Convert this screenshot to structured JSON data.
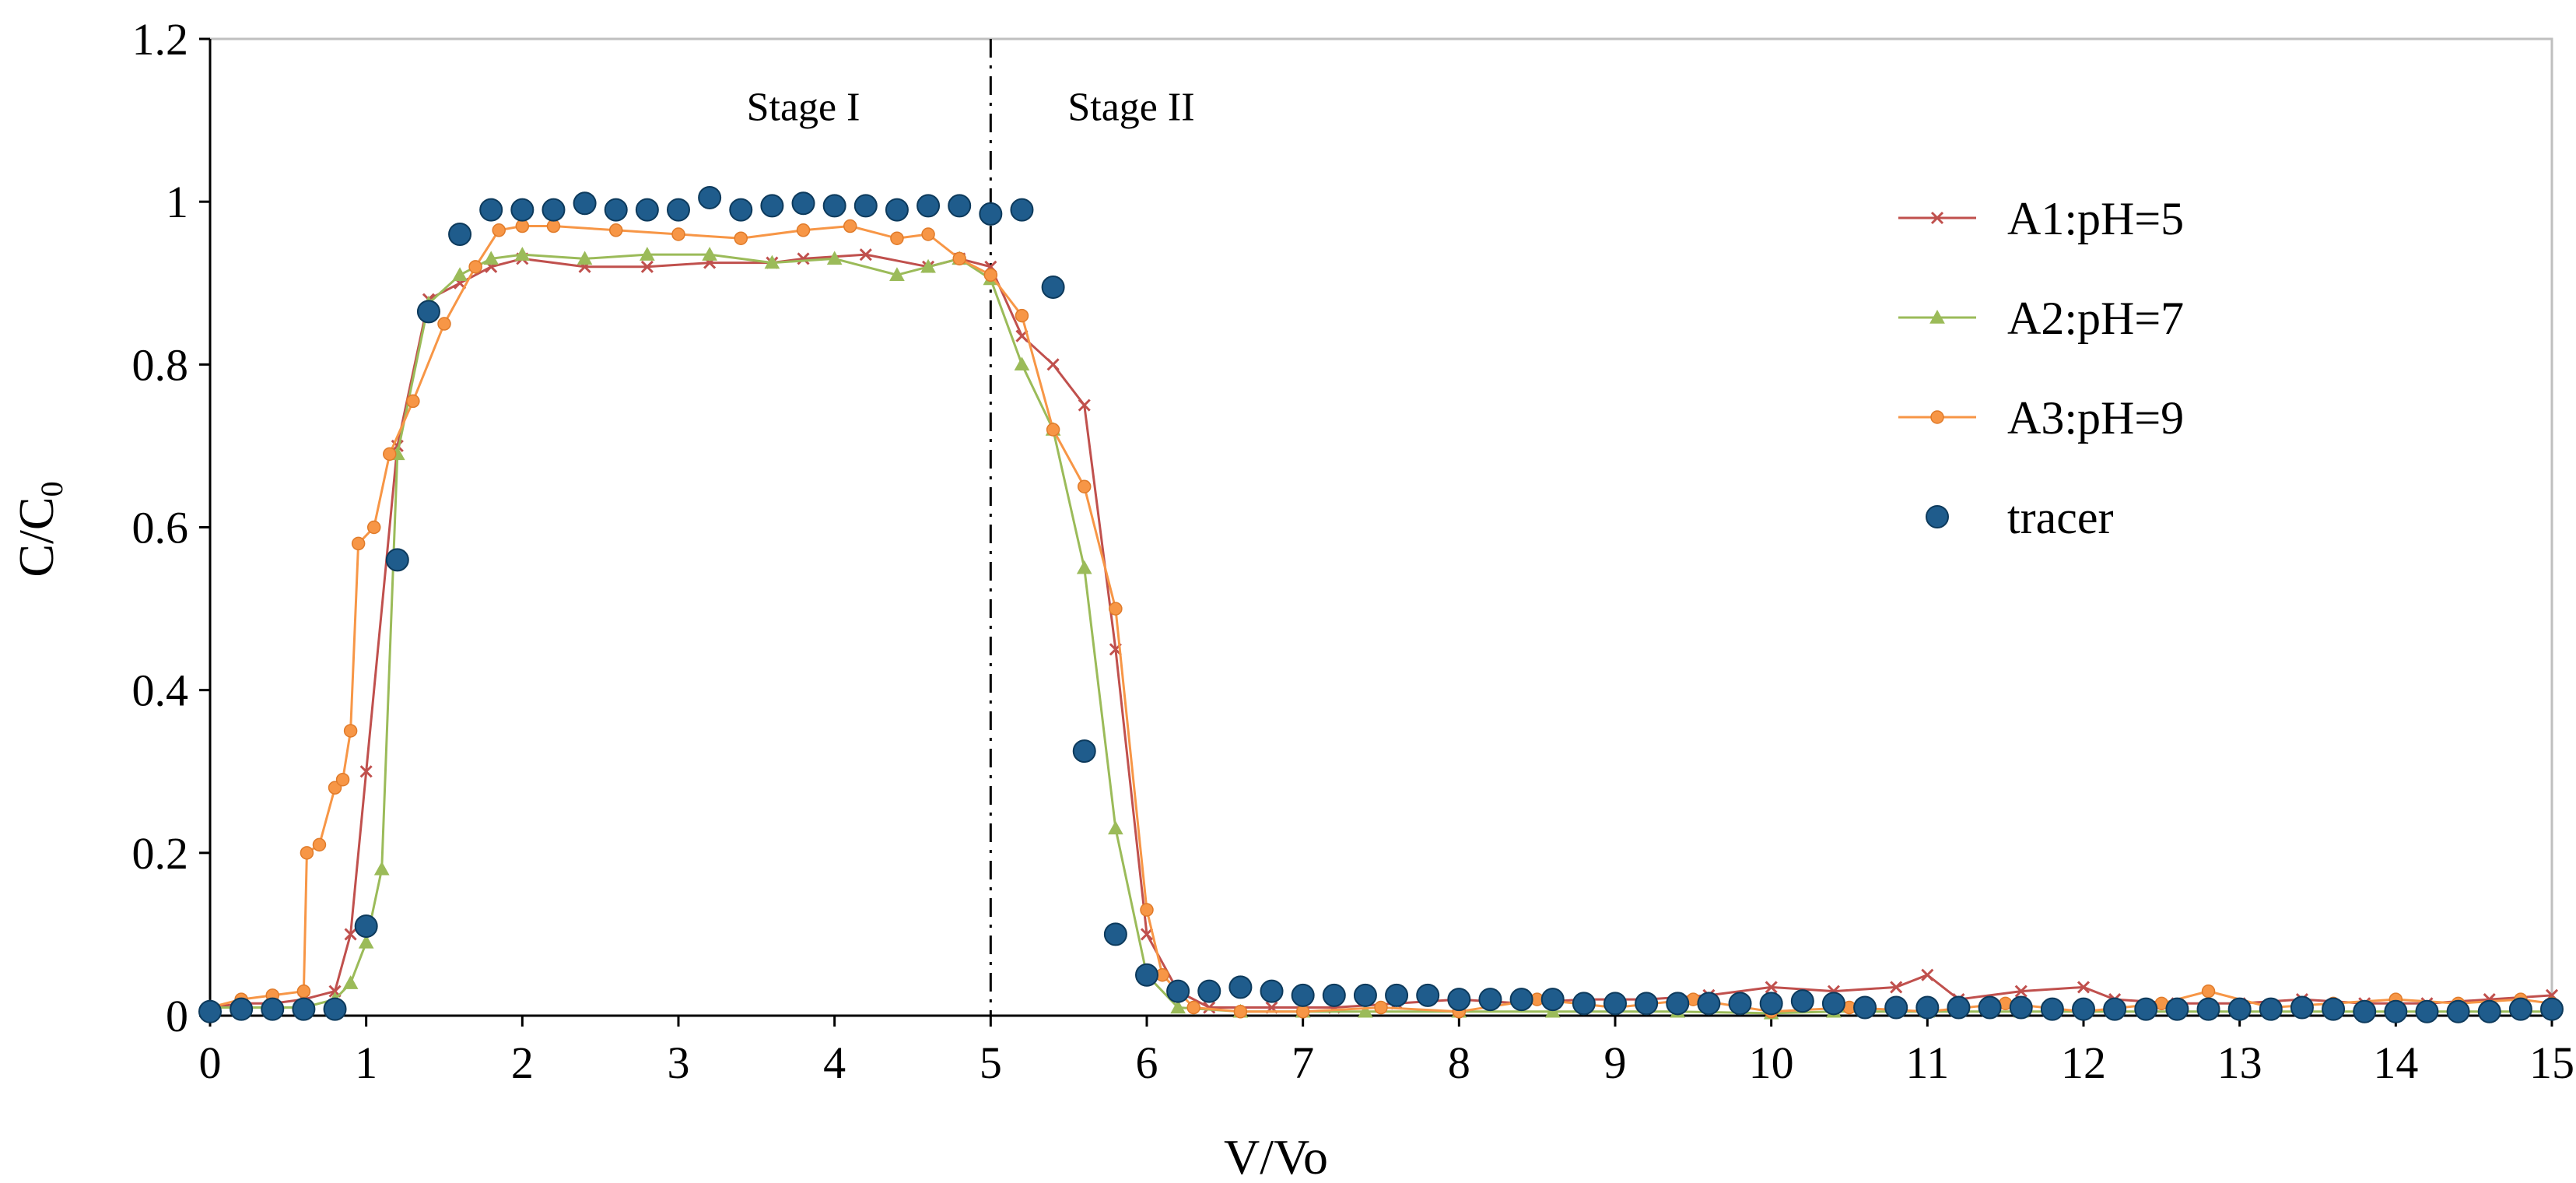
{
  "chart_data": {
    "type": "line",
    "title": "",
    "xlabel": "V/Vo",
    "ylabel_main": "C/C",
    "ylabel_sub": "0",
    "xlim": [
      0,
      15
    ],
    "ylim": [
      0,
      1.2
    ],
    "x_ticks": [
      "0",
      "1",
      "2",
      "3",
      "4",
      "5",
      "6",
      "7",
      "8",
      "9",
      "10",
      "11",
      "12",
      "13",
      "14",
      "15"
    ],
    "y_ticks": [
      "0",
      "0.2",
      "0.4",
      "0.6",
      "0.8",
      "1",
      "1.2"
    ],
    "x_tick_values": [
      0,
      1,
      2,
      3,
      4,
      5,
      6,
      7,
      8,
      9,
      10,
      11,
      12,
      13,
      14,
      15
    ],
    "y_tick_values": [
      0,
      0.2,
      0.4,
      0.6,
      0.8,
      1,
      1.2
    ],
    "grid": false,
    "legend_position": "top-right",
    "divider": {
      "x": 5,
      "style": "dash-dot"
    },
    "annotations": [
      {
        "text": "Stage I",
        "x": 3.8,
        "y": 1.1
      },
      {
        "text": "Stage II",
        "x": 5.9,
        "y": 1.1
      }
    ],
    "series": [
      {
        "name": "A1:pH=5",
        "color": "#c0504d",
        "marker": "x",
        "points": [
          [
            0,
            0.01
          ],
          [
            0.2,
            0.015
          ],
          [
            0.4,
            0.015
          ],
          [
            0.6,
            0.02
          ],
          [
            0.8,
            0.03
          ],
          [
            0.9,
            0.1
          ],
          [
            1.0,
            0.3
          ],
          [
            1.2,
            0.7
          ],
          [
            1.4,
            0.88
          ],
          [
            1.6,
            0.9
          ],
          [
            1.8,
            0.92
          ],
          [
            2.0,
            0.93
          ],
          [
            2.4,
            0.92
          ],
          [
            2.8,
            0.92
          ],
          [
            3.2,
            0.925
          ],
          [
            3.6,
            0.925
          ],
          [
            3.8,
            0.93
          ],
          [
            4.2,
            0.935
          ],
          [
            4.6,
            0.92
          ],
          [
            4.8,
            0.93
          ],
          [
            5.0,
            0.92
          ],
          [
            5.2,
            0.835
          ],
          [
            5.4,
            0.8
          ],
          [
            5.6,
            0.75
          ],
          [
            5.8,
            0.45
          ],
          [
            6.0,
            0.1
          ],
          [
            6.2,
            0.03
          ],
          [
            6.4,
            0.01
          ],
          [
            6.8,
            0.01
          ],
          [
            7.2,
            0.01
          ],
          [
            7.6,
            0.015
          ],
          [
            8.0,
            0.02
          ],
          [
            8.4,
            0.015
          ],
          [
            8.8,
            0.02
          ],
          [
            9.2,
            0.02
          ],
          [
            9.6,
            0.025
          ],
          [
            10.0,
            0.035
          ],
          [
            10.4,
            0.03
          ],
          [
            10.8,
            0.035
          ],
          [
            11.0,
            0.05
          ],
          [
            11.2,
            0.02
          ],
          [
            11.6,
            0.03
          ],
          [
            12.0,
            0.035
          ],
          [
            12.2,
            0.02
          ],
          [
            12.6,
            0.015
          ],
          [
            13.0,
            0.015
          ],
          [
            13.4,
            0.02
          ],
          [
            13.8,
            0.015
          ],
          [
            14.2,
            0.015
          ],
          [
            14.6,
            0.02
          ],
          [
            15.0,
            0.025
          ]
        ]
      },
      {
        "name": "A2:pH=7",
        "color": "#9bbb59",
        "marker": "triangle",
        "points": [
          [
            0,
            0.01
          ],
          [
            0.2,
            0.01
          ],
          [
            0.4,
            0.01
          ],
          [
            0.6,
            0.01
          ],
          [
            0.8,
            0.02
          ],
          [
            0.9,
            0.04
          ],
          [
            1.0,
            0.09
          ],
          [
            1.1,
            0.18
          ],
          [
            1.2,
            0.69
          ],
          [
            1.4,
            0.875
          ],
          [
            1.6,
            0.91
          ],
          [
            1.8,
            0.93
          ],
          [
            2.0,
            0.935
          ],
          [
            2.4,
            0.93
          ],
          [
            2.8,
            0.935
          ],
          [
            3.2,
            0.935
          ],
          [
            3.6,
            0.925
          ],
          [
            4.0,
            0.93
          ],
          [
            4.4,
            0.91
          ],
          [
            4.6,
            0.92
          ],
          [
            4.8,
            0.93
          ],
          [
            5.0,
            0.905
          ],
          [
            5.2,
            0.8
          ],
          [
            5.4,
            0.72
          ],
          [
            5.6,
            0.55
          ],
          [
            5.8,
            0.23
          ],
          [
            6.0,
            0.05
          ],
          [
            6.2,
            0.01
          ],
          [
            6.6,
            0.005
          ],
          [
            7.0,
            0.005
          ],
          [
            7.4,
            0.005
          ],
          [
            8.0,
            0.005
          ],
          [
            8.6,
            0.005
          ],
          [
            9.4,
            0.005
          ],
          [
            10.0,
            0.003
          ],
          [
            10.4,
            0.005
          ],
          [
            11.0,
            0.005
          ],
          [
            11.6,
            0.005
          ],
          [
            12.4,
            0.005
          ],
          [
            13.2,
            0.005
          ],
          [
            14.0,
            0.005
          ],
          [
            15.0,
            0.005
          ]
        ]
      },
      {
        "name": "A3:pH=9",
        "color": "#f79646",
        "marker": "diamond",
        "points": [
          [
            0,
            0.01
          ],
          [
            0.2,
            0.02
          ],
          [
            0.4,
            0.025
          ],
          [
            0.6,
            0.03
          ],
          [
            0.62,
            0.2
          ],
          [
            0.7,
            0.21
          ],
          [
            0.8,
            0.28
          ],
          [
            0.85,
            0.29
          ],
          [
            0.9,
            0.35
          ],
          [
            0.95,
            0.58
          ],
          [
            1.05,
            0.6
          ],
          [
            1.15,
            0.69
          ],
          [
            1.3,
            0.755
          ],
          [
            1.5,
            0.85
          ],
          [
            1.7,
            0.92
          ],
          [
            1.85,
            0.965
          ],
          [
            2.0,
            0.97
          ],
          [
            2.2,
            0.97
          ],
          [
            2.6,
            0.965
          ],
          [
            3.0,
            0.96
          ],
          [
            3.4,
            0.955
          ],
          [
            3.8,
            0.965
          ],
          [
            4.1,
            0.97
          ],
          [
            4.4,
            0.955
          ],
          [
            4.6,
            0.96
          ],
          [
            4.8,
            0.93
          ],
          [
            5.0,
            0.91
          ],
          [
            5.2,
            0.86
          ],
          [
            5.4,
            0.72
          ],
          [
            5.6,
            0.65
          ],
          [
            5.8,
            0.5
          ],
          [
            6.0,
            0.13
          ],
          [
            6.1,
            0.05
          ],
          [
            6.3,
            0.01
          ],
          [
            6.6,
            0.005
          ],
          [
            7.0,
            0.005
          ],
          [
            7.5,
            0.01
          ],
          [
            8.0,
            0.005
          ],
          [
            8.5,
            0.02
          ],
          [
            9.0,
            0.01
          ],
          [
            9.5,
            0.02
          ],
          [
            10.0,
            0.005
          ],
          [
            10.5,
            0.01
          ],
          [
            11.0,
            0.005
          ],
          [
            11.5,
            0.015
          ],
          [
            12.0,
            0.005
          ],
          [
            12.5,
            0.015
          ],
          [
            12.8,
            0.03
          ],
          [
            13.2,
            0.01
          ],
          [
            13.6,
            0.015
          ],
          [
            14.0,
            0.02
          ],
          [
            14.4,
            0.015
          ],
          [
            14.8,
            0.02
          ],
          [
            15.0,
            0.015
          ]
        ]
      },
      {
        "name": "tracer",
        "color": "#1f5c8c",
        "marker": "dot",
        "points": [
          [
            0,
            0.005
          ],
          [
            0.2,
            0.008
          ],
          [
            0.4,
            0.008
          ],
          [
            0.6,
            0.008
          ],
          [
            0.8,
            0.008
          ],
          [
            1.0,
            0.11
          ],
          [
            1.2,
            0.56
          ],
          [
            1.4,
            0.865
          ],
          [
            1.6,
            0.96
          ],
          [
            1.8,
            0.99
          ],
          [
            2.0,
            0.99
          ],
          [
            2.2,
            0.99
          ],
          [
            2.4,
            0.998
          ],
          [
            2.6,
            0.99
          ],
          [
            2.8,
            0.99
          ],
          [
            3.0,
            0.99
          ],
          [
            3.2,
            1.005
          ],
          [
            3.4,
            0.99
          ],
          [
            3.6,
            0.995
          ],
          [
            3.8,
            0.998
          ],
          [
            4.0,
            0.995
          ],
          [
            4.2,
            0.995
          ],
          [
            4.4,
            0.99
          ],
          [
            4.6,
            0.995
          ],
          [
            4.8,
            0.995
          ],
          [
            5.0,
            0.985
          ],
          [
            5.2,
            0.99
          ],
          [
            5.4,
            0.895
          ],
          [
            5.6,
            0.325
          ],
          [
            5.8,
            0.1
          ],
          [
            6.0,
            0.05
          ],
          [
            6.2,
            0.03
          ],
          [
            6.4,
            0.03
          ],
          [
            6.6,
            0.035
          ],
          [
            6.8,
            0.03
          ],
          [
            7.0,
            0.025
          ],
          [
            7.2,
            0.025
          ],
          [
            7.4,
            0.025
          ],
          [
            7.6,
            0.025
          ],
          [
            7.8,
            0.025
          ],
          [
            8.0,
            0.02
          ],
          [
            8.2,
            0.02
          ],
          [
            8.4,
            0.02
          ],
          [
            8.6,
            0.02
          ],
          [
            8.8,
            0.015
          ],
          [
            9.0,
            0.015
          ],
          [
            9.2,
            0.015
          ],
          [
            9.4,
            0.015
          ],
          [
            9.6,
            0.015
          ],
          [
            9.8,
            0.015
          ],
          [
            10.0,
            0.015
          ],
          [
            10.2,
            0.018
          ],
          [
            10.4,
            0.015
          ],
          [
            10.6,
            0.01
          ],
          [
            10.8,
            0.01
          ],
          [
            11.0,
            0.01
          ],
          [
            11.2,
            0.01
          ],
          [
            11.4,
            0.01
          ],
          [
            11.6,
            0.01
          ],
          [
            11.8,
            0.008
          ],
          [
            12.0,
            0.008
          ],
          [
            12.2,
            0.008
          ],
          [
            12.4,
            0.008
          ],
          [
            12.6,
            0.008
          ],
          [
            12.8,
            0.008
          ],
          [
            13.0,
            0.008
          ],
          [
            13.2,
            0.008
          ],
          [
            13.4,
            0.01
          ],
          [
            13.6,
            0.008
          ],
          [
            13.8,
            0.005
          ],
          [
            14.0,
            0.005
          ],
          [
            14.2,
            0.005
          ],
          [
            14.4,
            0.005
          ],
          [
            14.6,
            0.005
          ],
          [
            14.8,
            0.008
          ],
          [
            15.0,
            0.008
          ]
        ]
      }
    ]
  }
}
